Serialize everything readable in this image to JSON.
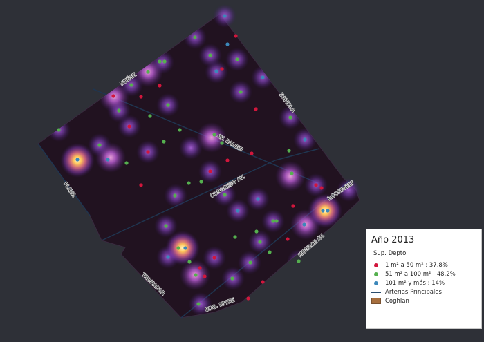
{
  "legend": {
    "title": "Año 2013",
    "subtitle": "Sup. Depto.",
    "items": [
      {
        "label": "1 m² a 50 m² : 37,8%",
        "color": "#d2163c",
        "icon": "red-dot"
      },
      {
        "label": "51  m²  a 100 m² : 48,2%",
        "color": "#55b04f",
        "icon": "green-dot"
      },
      {
        "label": "101  m²  y más : 14%",
        "color": "#3c88ba",
        "icon": "blue-dot"
      },
      {
        "label": "Arterias Principales",
        "color": "#2a4d6e",
        "icon": "line"
      },
      {
        "label": "Coghlan",
        "color": "#a76f3e",
        "icon": "fill"
      }
    ]
  },
  "streets": {
    "nunez": "NUÑEZ",
    "zapiola": "ZAPIOLA",
    "av_balbin": "AV. BALBIN",
    "congreso": "CONGRESO AV.",
    "roosevelt": "ROOSEVELT",
    "plaza": "PLAZA",
    "monroe": "MONROE AV.",
    "tronador": "TRONADOR",
    "mitre": "BDO. MITRE"
  },
  "points": {
    "small": [
      [
        341,
        52
      ],
      [
        321,
        100
      ],
      [
        231,
        124
      ],
      [
        204,
        140
      ],
      [
        164,
        139
      ],
      [
        187,
        183
      ],
      [
        370,
        158
      ],
      [
        214,
        220
      ],
      [
        364,
        222
      ],
      [
        304,
        248
      ],
      [
        329,
        232
      ],
      [
        204,
        268
      ],
      [
        457,
        268
      ],
      [
        465,
        272
      ],
      [
        424,
        298
      ],
      [
        416,
        346
      ],
      [
        310,
        373
      ],
      [
        289,
        388
      ],
      [
        380,
        408
      ],
      [
        359,
        432
      ],
      [
        296,
        400
      ]
    ],
    "medium": [
      [
        282,
        54
      ],
      [
        304,
        80
      ],
      [
        343,
        86
      ],
      [
        238,
        89
      ],
      [
        231,
        89
      ],
      [
        214,
        104
      ],
      [
        190,
        123
      ],
      [
        348,
        133
      ],
      [
        243,
        152
      ],
      [
        172,
        160
      ],
      [
        217,
        168
      ],
      [
        420,
        170
      ],
      [
        260,
        188
      ],
      [
        85,
        188
      ],
      [
        310,
        195
      ],
      [
        237,
        205
      ],
      [
        144,
        210
      ],
      [
        321,
        207
      ],
      [
        183,
        236
      ],
      [
        418,
        218
      ],
      [
        291,
        263
      ],
      [
        273,
        265
      ],
      [
        422,
        251
      ],
      [
        253,
        283
      ],
      [
        325,
        282
      ],
      [
        395,
        320
      ],
      [
        400,
        320
      ],
      [
        240,
        327
      ],
      [
        371,
        335
      ],
      [
        340,
        343
      ],
      [
        376,
        350
      ],
      [
        390,
        365
      ],
      [
        362,
        380
      ],
      [
        336,
        403
      ],
      [
        274,
        379
      ],
      [
        283,
        398
      ],
      [
        287,
        440
      ],
      [
        432,
        378
      ],
      [
        258,
        359
      ]
    ],
    "large": [
      [
        325,
        23
      ],
      [
        329,
        64
      ],
      [
        313,
        103
      ],
      [
        380,
        112
      ],
      [
        156,
        231
      ],
      [
        441,
        202
      ],
      [
        373,
        288
      ],
      [
        344,
        305
      ],
      [
        440,
        325
      ],
      [
        243,
        372
      ],
      [
        112,
        231
      ],
      [
        268,
        359
      ],
      [
        467,
        305
      ],
      [
        474,
        305
      ]
    ]
  },
  "heat": {
    "hot": [
      [
        112,
        232
      ],
      [
        264,
        359
      ],
      [
        470,
        305
      ]
    ],
    "warm": [
      [
        214,
        104
      ],
      [
        306,
        199
      ],
      [
        160,
        228
      ],
      [
        420,
        255
      ],
      [
        442,
        325
      ],
      [
        282,
        398
      ],
      [
        165,
        140
      ]
    ],
    "cool": [
      [
        325,
        23
      ],
      [
        282,
        54
      ],
      [
        235,
        90
      ],
      [
        313,
        104
      ],
      [
        348,
        133
      ],
      [
        380,
        112
      ],
      [
        420,
        170
      ],
      [
        441,
        202
      ],
      [
        504,
        275
      ],
      [
        373,
        288
      ],
      [
        344,
        305
      ],
      [
        395,
        320
      ],
      [
        337,
        403
      ],
      [
        243,
        372
      ],
      [
        190,
        123
      ],
      [
        187,
        183
      ],
      [
        85,
        188
      ],
      [
        144,
        210
      ],
      [
        214,
        220
      ],
      [
        276,
        214
      ],
      [
        304,
        248
      ],
      [
        254,
        283
      ],
      [
        240,
        327
      ],
      [
        290,
        440
      ],
      [
        361,
        380
      ],
      [
        432,
        378
      ],
      [
        310,
        373
      ],
      [
        172,
        160
      ],
      [
        343,
        86
      ],
      [
        304,
        80
      ],
      [
        243,
        152
      ],
      [
        457,
        268
      ],
      [
        325,
        282
      ],
      [
        376,
        350
      ]
    ]
  }
}
